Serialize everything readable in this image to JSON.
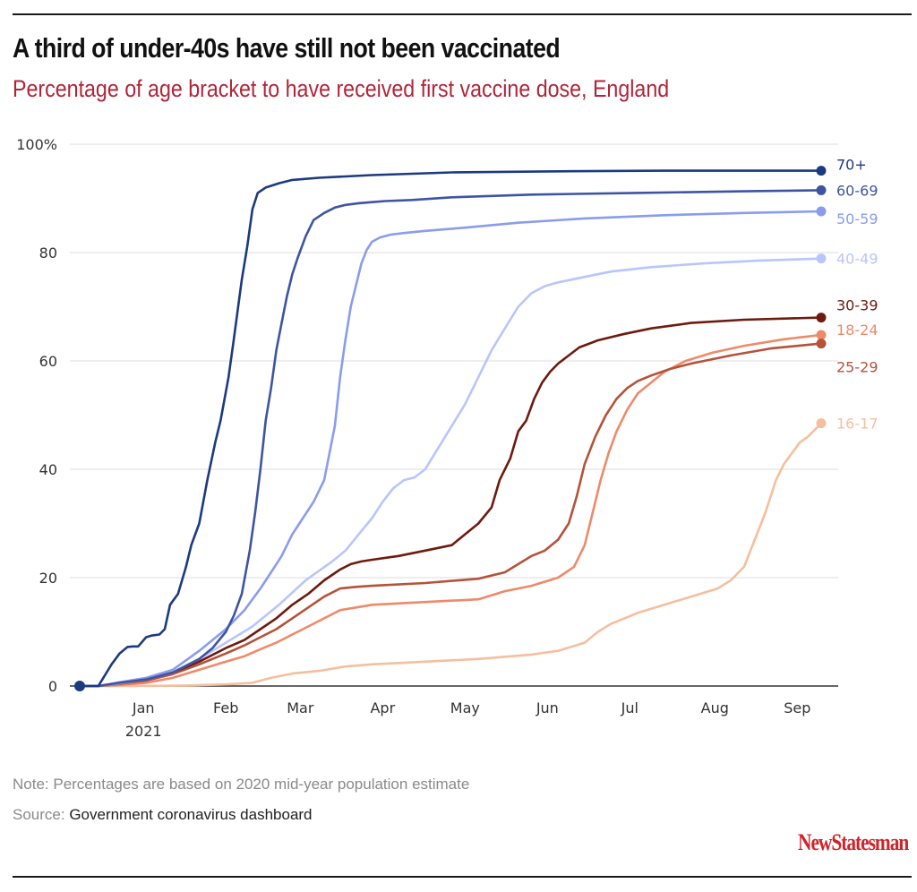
{
  "header": {
    "title": "A third of under-40s have still not been vaccinated",
    "subtitle": "Percentage of age bracket to have received first vaccine dose, England"
  },
  "footer": {
    "note": "Note: Percentages are based on 2020 mid-year population estimate",
    "source_label": "Source: ",
    "source_value": "Government coronavirus dashboard",
    "logo": "NewStatesman"
  },
  "colors": {
    "title": "#111111",
    "subtitle": "#b0253a",
    "logo": "#d1232a"
  },
  "chart_data": {
    "type": "line",
    "title": "A third of under-40s have still not been vaccinated",
    "subtitle": "Percentage of age bracket to have received first vaccine dose, England",
    "xlabel": "",
    "ylabel": "",
    "x_unit": "days since 8 Dec 2020",
    "xlim": [
      0,
      279
    ],
    "ylim": [
      0,
      100
    ],
    "grid": true,
    "legend": "direct labels at line ends (right)",
    "yticks": [
      {
        "value": 0,
        "label": "0"
      },
      {
        "value": 20,
        "label": "20"
      },
      {
        "value": 40,
        "label": "40"
      },
      {
        "value": 60,
        "label": "60"
      },
      {
        "value": 80,
        "label": "80"
      },
      {
        "value": 100,
        "label": "100%"
      }
    ],
    "xticks": [
      {
        "value": 24,
        "label": "Jan",
        "sublabel": "2021"
      },
      {
        "value": 55,
        "label": "Feb"
      },
      {
        "value": 83,
        "label": "Mar"
      },
      {
        "value": 114,
        "label": "Apr"
      },
      {
        "value": 145,
        "label": "May"
      },
      {
        "value": 176,
        "label": "Jun"
      },
      {
        "value": 207,
        "label": "Jul"
      },
      {
        "value": 239,
        "label": "Aug"
      },
      {
        "value": 270,
        "label": "Sep"
      }
    ],
    "series": [
      {
        "name": "70+",
        "color": "#1c3a80",
        "x": [
          0,
          7,
          12,
          15,
          18,
          20,
          22,
          25,
          27,
          30,
          32,
          34,
          37,
          40,
          42,
          45,
          48,
          51,
          53,
          56,
          58,
          61,
          63,
          65,
          67,
          70,
          75,
          80,
          90,
          110,
          140,
          180,
          220,
          279
        ],
        "y": [
          0,
          0,
          4,
          6,
          7.2,
          7.3,
          7.3,
          9,
          9.3,
          9.5,
          10.5,
          15,
          17,
          22,
          26,
          30,
          38,
          45,
          49,
          57,
          64,
          75,
          81,
          88,
          91,
          92,
          92.8,
          93.4,
          93.8,
          94.3,
          94.8,
          95,
          95.1,
          95.1
        ]
      },
      {
        "name": "60-69",
        "color": "#3e54a3",
        "x": [
          0,
          7,
          15,
          25,
          35,
          45,
          50,
          55,
          58,
          61,
          64,
          66,
          68,
          70,
          72,
          74,
          76,
          78,
          80,
          82,
          85,
          88,
          92,
          96,
          100,
          105,
          110,
          115,
          125,
          140,
          170,
          210,
          250,
          279
        ],
        "y": [
          0,
          0,
          0.6,
          1.2,
          2.5,
          5,
          7,
          10,
          13,
          17,
          25,
          32,
          40,
          49,
          55,
          62,
          67,
          72,
          76,
          79,
          83,
          86,
          87.3,
          88.3,
          88.8,
          89.1,
          89.3,
          89.5,
          89.7,
          90.2,
          90.7,
          91.0,
          91.3,
          91.5
        ]
      },
      {
        "name": "50-59",
        "color": "#8a9cee",
        "x": [
          0,
          7,
          15,
          25,
          35,
          45,
          55,
          62,
          68,
          72,
          76,
          80,
          84,
          88,
          92,
          96,
          98,
          100,
          102,
          104,
          106,
          108,
          110,
          113,
          117,
          122,
          130,
          145,
          165,
          190,
          220,
          250,
          279
        ],
        "y": [
          0,
          0,
          0.7,
          1.5,
          3,
          6.5,
          10.5,
          14,
          18,
          21,
          24,
          28,
          31,
          34,
          38,
          48,
          57,
          64,
          70,
          74,
          78,
          80.5,
          82,
          82.8,
          83.3,
          83.6,
          84,
          84.6,
          85.5,
          86.3,
          86.9,
          87.3,
          87.6
        ]
      },
      {
        "name": "40-49",
        "color": "#b8c6fb",
        "x": [
          0,
          7,
          15,
          25,
          35,
          45,
          55,
          65,
          75,
          85,
          95,
          100,
          105,
          110,
          114,
          118,
          122,
          126,
          130,
          135,
          140,
          145,
          150,
          155,
          160,
          165,
          170,
          175,
          180,
          190,
          200,
          215,
          235,
          255,
          279
        ],
        "y": [
          0,
          0,
          0.5,
          1.2,
          2.5,
          5,
          8,
          11,
          15,
          19.5,
          23,
          25,
          28,
          31,
          34,
          36.5,
          38,
          38.5,
          40,
          44,
          48,
          52,
          57,
          62,
          66,
          70,
          72.5,
          73.8,
          74.5,
          75.5,
          76.5,
          77.3,
          78,
          78.5,
          78.9
        ]
      },
      {
        "name": "30-39",
        "color": "#6e1a0e",
        "x": [
          0,
          7,
          15,
          25,
          35,
          45,
          55,
          62,
          68,
          74,
          80,
          86,
          92,
          98,
          102,
          106,
          110,
          120,
          130,
          140,
          150,
          155,
          158,
          162,
          165,
          168,
          171,
          174,
          177,
          180,
          184,
          188,
          195,
          205,
          215,
          230,
          250,
          279
        ],
        "y": [
          0,
          0,
          0.5,
          1.2,
          2.5,
          4.5,
          7,
          8.5,
          10.5,
          12.5,
          15,
          17,
          19.5,
          21.5,
          22.5,
          23,
          23.3,
          24,
          25,
          26,
          30,
          33,
          38,
          42,
          47,
          49,
          53,
          56,
          58,
          59.5,
          61,
          62.5,
          63.8,
          65,
          66,
          67,
          67.6,
          68
        ]
      },
      {
        "name": "25-29",
        "color": "#b5523a",
        "x": [
          0,
          7,
          15,
          25,
          35,
          45,
          55,
          62,
          68,
          74,
          80,
          86,
          92,
          98,
          104,
          110,
          130,
          150,
          160,
          165,
          170,
          175,
          180,
          184,
          187,
          190,
          194,
          198,
          202,
          206,
          210,
          215,
          222,
          230,
          245,
          260,
          279
        ],
        "y": [
          0,
          0,
          0.4,
          1,
          2.2,
          4,
          6,
          7.5,
          9,
          10.5,
          12.5,
          14.5,
          16.5,
          18,
          18.3,
          18.5,
          19,
          19.8,
          21,
          22.5,
          24,
          25,
          27,
          30,
          35,
          41,
          46,
          50,
          53,
          55,
          56.3,
          57.3,
          58.5,
          59.5,
          61,
          62.3,
          63.2
        ]
      },
      {
        "name": "18-24",
        "color": "#ee8a6a",
        "x": [
          0,
          7,
          15,
          25,
          35,
          45,
          55,
          62,
          68,
          74,
          80,
          86,
          92,
          98,
          104,
          110,
          130,
          150,
          160,
          170,
          180,
          186,
          190,
          193,
          196,
          199,
          202,
          206,
          210,
          215,
          220,
          228,
          238,
          250,
          265,
          279
        ],
        "y": [
          0,
          0,
          0.2,
          0.6,
          1.5,
          3,
          4.5,
          5.5,
          6.8,
          8,
          9.5,
          11,
          12.5,
          14,
          14.5,
          15,
          15.5,
          16,
          17.5,
          18.5,
          20,
          22,
          26,
          32,
          38,
          43,
          47,
          51,
          54,
          56,
          58,
          60,
          61.5,
          62.8,
          64,
          64.8
        ]
      },
      {
        "name": "16-17",
        "color": "#f5bf9e",
        "x": [
          0,
          20,
          40,
          55,
          65,
          72,
          80,
          90,
          100,
          110,
          130,
          150,
          170,
          180,
          190,
          195,
          200,
          205,
          210,
          220,
          230,
          240,
          245,
          250,
          254,
          258,
          262,
          265,
          268,
          271,
          274,
          277,
          279
        ],
        "y": [
          0,
          0,
          0.1,
          0.3,
          0.6,
          1.5,
          2.3,
          2.8,
          3.6,
          4,
          4.5,
          5,
          5.8,
          6.5,
          8,
          10,
          11.5,
          12.5,
          13.5,
          15,
          16.5,
          18,
          19.5,
          22,
          27,
          32,
          38,
          41,
          43,
          45,
          46,
          47.5,
          48.5
        ]
      }
    ]
  }
}
